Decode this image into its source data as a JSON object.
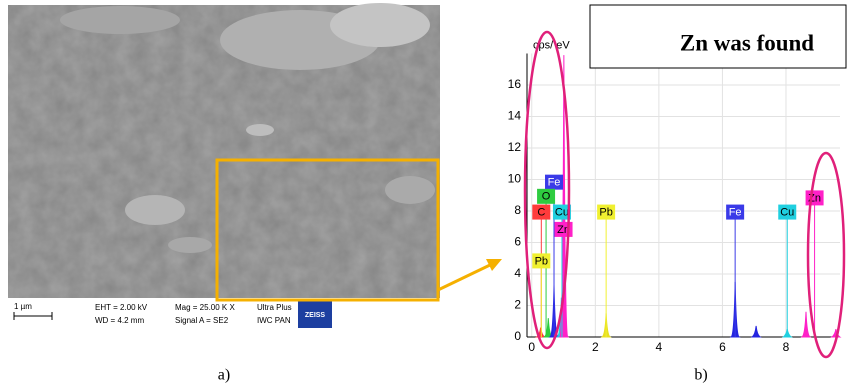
{
  "figure": {
    "sem": {
      "scale_bar": "1 µm",
      "eht": "EHT = 2.00 kV",
      "wd": "WD = 4.2 mm",
      "mag": "Mag = 25.00 K X",
      "signal": "Signal A = SE2",
      "instrument": "Ultra Plus",
      "lab": "IWC PAN",
      "logo": "ZEISS"
    },
    "label_a": "a)",
    "label_b": "b)",
    "callout": "Zn was found"
  },
  "chart_data": {
    "type": "spectrum",
    "y_label": "cps/ eV",
    "xlim": [
      -0.15,
      9.7
    ],
    "ylim": [
      0,
      18
    ],
    "xticks": [
      0,
      2,
      4,
      6,
      8
    ],
    "yticks": [
      0,
      2,
      4,
      6,
      8,
      10,
      12,
      14,
      16
    ],
    "grid": true,
    "series": [
      {
        "name": "C",
        "color": "#ff3b3b",
        "x": [
          0.28
        ],
        "values": [
          0.6
        ]
      },
      {
        "name": "O",
        "color": "#2ecc40",
        "x": [
          0.52
        ],
        "values": [
          1.2
        ]
      },
      {
        "name": "Fe",
        "color": "#2525e0",
        "x": [
          0.7,
          6.4,
          7.06
        ],
        "values": [
          3.3,
          3.5,
          0.7
        ]
      },
      {
        "name": "Cu",
        "color": "#20d0e0",
        "x": [
          0.93,
          8.04
        ],
        "values": [
          2.5,
          0.5
        ]
      },
      {
        "name": "Zn",
        "color": "#ff20c8",
        "x": [
          1.01,
          8.63,
          9.57
        ],
        "values": [
          17.9,
          1.6,
          0.5
        ]
      },
      {
        "name": "Pb",
        "color": "#e8e020",
        "x": [
          2.34
        ],
        "values": [
          1.5
        ]
      }
    ],
    "annotations": [
      {
        "text": "Fe",
        "x": 0.7,
        "y": 9.8,
        "color": "#3a3ae8"
      },
      {
        "text": "O",
        "x": 0.45,
        "y": 8.9,
        "color": "#2ecc40"
      },
      {
        "text": "C",
        "x": 0.3,
        "y": 7.9,
        "color": "#ff3b3b"
      },
      {
        "text": "Cu",
        "x": 0.95,
        "y": 7.9,
        "color": "#20d0e0"
      },
      {
        "text": "Zn",
        "x": 1.0,
        "y": 6.8,
        "color": "#ff20c8"
      },
      {
        "text": "Pb",
        "x": 0.3,
        "y": 4.8,
        "color": "#f0f030"
      },
      {
        "text": "Pb",
        "x": 2.34,
        "y": 7.9,
        "color": "#f0f030"
      },
      {
        "text": "Fe",
        "x": 6.4,
        "y": 7.9,
        "color": "#3a3ae8"
      },
      {
        "text": "Cu",
        "x": 8.04,
        "y": 7.9,
        "color": "#20d0e0"
      },
      {
        "text": "Zn",
        "x": 8.9,
        "y": 8.8,
        "color": "#ff20c8"
      }
    ]
  }
}
